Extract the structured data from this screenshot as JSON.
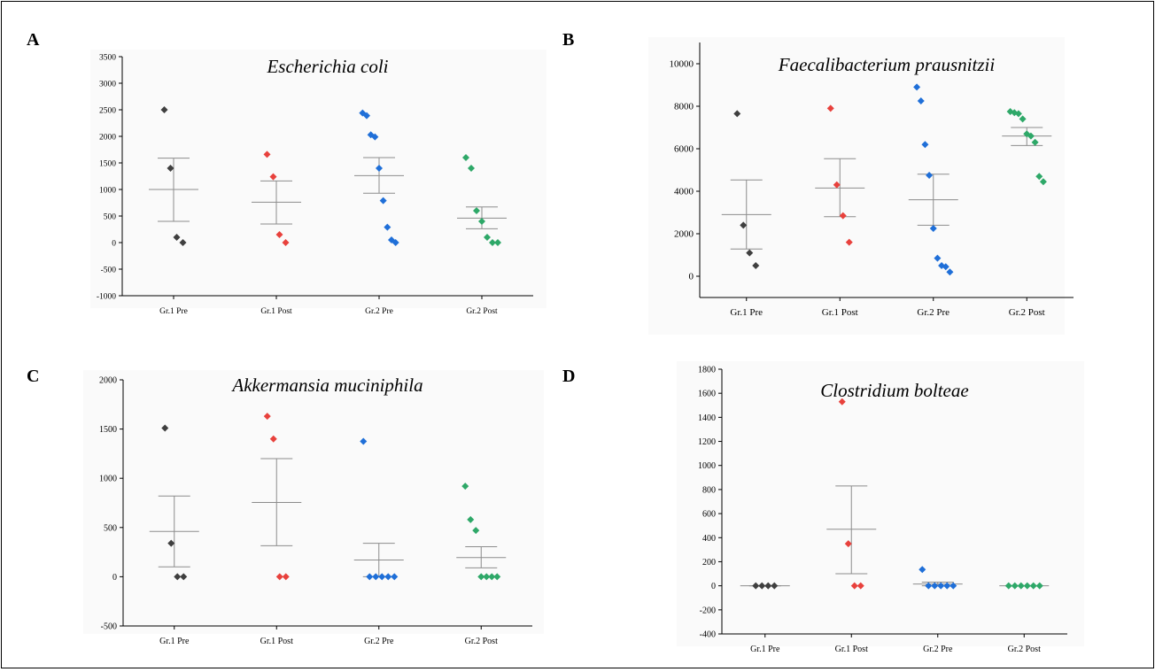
{
  "figure": {
    "panels": [
      {
        "letter": "A"
      },
      {
        "letter": "B"
      },
      {
        "letter": "C"
      },
      {
        "letter": "D"
      }
    ]
  },
  "colors": {
    "Gr.1 Pre": "#3f3f3f",
    "Gr.1 Post": "#e8413c",
    "Gr.2 Pre": "#1f6fd8",
    "Gr.2 Post": "#2ea868",
    "axis": "#000000",
    "errorbar": "#8c8c8c",
    "panel_bg": "#fafafa"
  },
  "chart_data": [
    {
      "type": "scatter",
      "title": "Escherichia coli",
      "categories": [
        "Gr.1 Pre",
        "Gr.1 Post",
        "Gr.2 Pre",
        "Gr.2 Post"
      ],
      "ylim": [
        -1000,
        3500
      ],
      "yticks": [
        -1000,
        -500,
        0,
        500,
        1000,
        1500,
        2000,
        2500,
        3000,
        3500
      ],
      "grid": false,
      "series": [
        {
          "category": "Gr.1 Pre",
          "points": [
            2500,
            1400,
            100,
            0
          ],
          "mean": 1000,
          "err_low": 400,
          "err_high": 1590
        },
        {
          "category": "Gr.1 Post",
          "points": [
            1660,
            1240,
            150,
            0
          ],
          "mean": 760,
          "err_low": 350,
          "err_high": 1160
        },
        {
          "category": "Gr.2 Pre",
          "points": [
            2440,
            2390,
            2030,
            1990,
            1400,
            790,
            290,
            50,
            0
          ],
          "mean": 1260,
          "err_low": 930,
          "err_high": 1600
        },
        {
          "category": "Gr.2 Post",
          "points": [
            1600,
            1400,
            600,
            400,
            100,
            0,
            0
          ],
          "mean": 460,
          "err_low": 260,
          "err_high": 670
        }
      ]
    },
    {
      "type": "scatter",
      "title": "Faecalibacterium prausnitzii",
      "categories": [
        "Gr.1 Pre",
        "Gr.1 Post",
        "Gr.2 Pre",
        "Gr.2 Post"
      ],
      "ylim": [
        -1000,
        11000
      ],
      "yticks": [
        0,
        2000,
        4000,
        6000,
        8000,
        10000
      ],
      "grid": false,
      "series": [
        {
          "category": "Gr.1 Pre",
          "points": [
            7650,
            2400,
            1100,
            500
          ],
          "mean": 2900,
          "err_low": 1280,
          "err_high": 4530
        },
        {
          "category": "Gr.1 Post",
          "points": [
            7900,
            4300,
            2850,
            1600
          ],
          "mean": 4150,
          "err_low": 2800,
          "err_high": 5530
        },
        {
          "category": "Gr.2 Pre",
          "points": [
            8900,
            8250,
            6200,
            4750,
            2250,
            850,
            500,
            450,
            200
          ],
          "mean": 3600,
          "err_low": 2400,
          "err_high": 4800
        },
        {
          "category": "Gr.2 Post",
          "points": [
            7750,
            7700,
            7650,
            7400,
            6700,
            6600,
            6300,
            4700,
            4450
          ],
          "mean": 6600,
          "err_low": 6150,
          "err_high": 7000
        }
      ]
    },
    {
      "type": "scatter",
      "title": "Akkermansia muciniphila",
      "categories": [
        "Gr.1 Pre",
        "Gr.1 Post",
        "Gr.2 Pre",
        "Gr.2 Post"
      ],
      "ylim": [
        -500,
        2000
      ],
      "yticks": [
        -500,
        0,
        500,
        1000,
        1500,
        2000
      ],
      "grid": false,
      "series": [
        {
          "category": "Gr.1 Pre",
          "points": [
            1510,
            340,
            0,
            0
          ],
          "mean": 460,
          "err_low": 100,
          "err_high": 820
        },
        {
          "category": "Gr.1 Post",
          "points": [
            1630,
            1400,
            0,
            0
          ],
          "mean": 755,
          "err_low": 315,
          "err_high": 1200
        },
        {
          "category": "Gr.2 Pre",
          "points": [
            1375,
            0,
            0,
            0,
            0,
            0
          ],
          "mean": 170,
          "err_low": 0,
          "err_high": 340
        },
        {
          "category": "Gr.2 Post",
          "points": [
            920,
            580,
            470,
            0,
            0,
            0,
            0
          ],
          "mean": 195,
          "err_low": 90,
          "err_high": 305
        }
      ]
    },
    {
      "type": "scatter",
      "title": "Clostridium bolteae",
      "categories": [
        "Gr.1 Pre",
        "Gr.1 Post",
        "Gr.2 Pre",
        "Gr.2 Post"
      ],
      "ylim": [
        -400,
        1800
      ],
      "yticks": [
        -400,
        -200,
        0,
        200,
        400,
        600,
        800,
        1000,
        1200,
        1400,
        1600,
        1800
      ],
      "grid": false,
      "series": [
        {
          "category": "Gr.1 Pre",
          "points": [
            0,
            0,
            0,
            0
          ],
          "mean": 0,
          "err_low": 0,
          "err_high": 0
        },
        {
          "category": "Gr.1 Post",
          "points": [
            1530,
            350,
            0,
            0
          ],
          "mean": 470,
          "err_low": 100,
          "err_high": 830
        },
        {
          "category": "Gr.2 Pre",
          "points": [
            135,
            0,
            0,
            0,
            0,
            0
          ],
          "mean": 15,
          "err_low": 0,
          "err_high": 30
        },
        {
          "category": "Gr.2 Post",
          "points": [
            0,
            0,
            0,
            0,
            0,
            0
          ],
          "mean": 0,
          "err_low": 0,
          "err_high": 0
        }
      ]
    }
  ]
}
